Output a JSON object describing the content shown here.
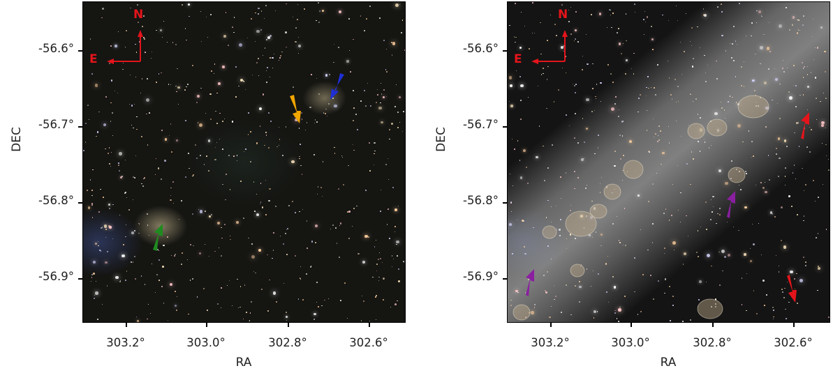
{
  "panels": [
    {
      "id": "left",
      "xlabel": "RA",
      "ylabel": "DEC",
      "yticks": [
        "-56.6°",
        "-56.7°",
        "-56.8°",
        "-56.9°"
      ],
      "xticks": [
        "303.2°",
        "303.0°",
        "302.8°",
        "302.6°"
      ],
      "compass": {
        "north": "N",
        "east": "E"
      },
      "arrows": [
        {
          "color": "#1f2fd6",
          "name": "blue-arrow"
        },
        {
          "color": "#f0a500",
          "name": "orange-arrow"
        },
        {
          "color": "#1f8a1f",
          "name": "green-arrow"
        }
      ]
    },
    {
      "id": "right",
      "xlabel": "RA",
      "ylabel": "DEC",
      "yticks": [
        "-56.6°",
        "-56.7°",
        "-56.8°",
        "-56.9°"
      ],
      "xticks": [
        "303.2°",
        "303.0°",
        "302.8°",
        "302.6°"
      ],
      "compass": {
        "north": "N",
        "east": "E"
      },
      "arrows": [
        {
          "color": "#e4141b",
          "name": "red-arrow-upper"
        },
        {
          "color": "#8a1fa0",
          "name": "purple-arrow-middle"
        },
        {
          "color": "#8a1fa0",
          "name": "purple-arrow-lower-left"
        },
        {
          "color": "#e4141b",
          "name": "red-arrow-lower"
        }
      ]
    }
  ],
  "colors": {
    "compass": "#e4141b",
    "background": "#ffffff"
  }
}
